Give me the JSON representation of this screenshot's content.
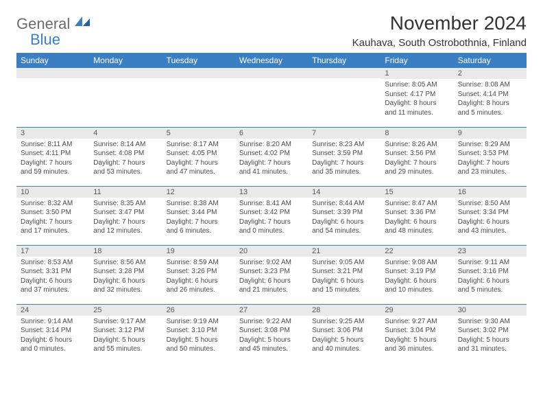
{
  "brand": {
    "text1": "General",
    "text2": "Blue",
    "text_color": "#6b6b6b",
    "accent_color": "#3a7fc4"
  },
  "header": {
    "month_title": "November 2024",
    "location": "Kauhava, South Ostrobothnia, Finland"
  },
  "styling": {
    "header_bg": "#3a7fc4",
    "header_text_color": "#ffffff",
    "daynum_bg": "#e9e9e9",
    "daynum_color": "#585858",
    "body_text_color": "#4a4a4a",
    "row_border_color": "#3a7fc4",
    "page_bg": "#ffffff",
    "font_family": "Arial",
    "month_title_fontsize": 28,
    "location_fontsize": 15,
    "header_fontsize": 12,
    "daynum_fontsize": 11,
    "content_fontsize": 10,
    "columns": 7,
    "rows": 5
  },
  "day_names": [
    "Sunday",
    "Monday",
    "Tuesday",
    "Wednesday",
    "Thursday",
    "Friday",
    "Saturday"
  ],
  "weeks": [
    [
      {
        "n": "",
        "sr": "",
        "ss": "",
        "dl": ""
      },
      {
        "n": "",
        "sr": "",
        "ss": "",
        "dl": ""
      },
      {
        "n": "",
        "sr": "",
        "ss": "",
        "dl": ""
      },
      {
        "n": "",
        "sr": "",
        "ss": "",
        "dl": ""
      },
      {
        "n": "",
        "sr": "",
        "ss": "",
        "dl": ""
      },
      {
        "n": "1",
        "sr": "Sunrise: 8:05 AM",
        "ss": "Sunset: 4:17 PM",
        "dl": "Daylight: 8 hours and 11 minutes."
      },
      {
        "n": "2",
        "sr": "Sunrise: 8:08 AM",
        "ss": "Sunset: 4:14 PM",
        "dl": "Daylight: 8 hours and 5 minutes."
      }
    ],
    [
      {
        "n": "3",
        "sr": "Sunrise: 8:11 AM",
        "ss": "Sunset: 4:11 PM",
        "dl": "Daylight: 7 hours and 59 minutes."
      },
      {
        "n": "4",
        "sr": "Sunrise: 8:14 AM",
        "ss": "Sunset: 4:08 PM",
        "dl": "Daylight: 7 hours and 53 minutes."
      },
      {
        "n": "5",
        "sr": "Sunrise: 8:17 AM",
        "ss": "Sunset: 4:05 PM",
        "dl": "Daylight: 7 hours and 47 minutes."
      },
      {
        "n": "6",
        "sr": "Sunrise: 8:20 AM",
        "ss": "Sunset: 4:02 PM",
        "dl": "Daylight: 7 hours and 41 minutes."
      },
      {
        "n": "7",
        "sr": "Sunrise: 8:23 AM",
        "ss": "Sunset: 3:59 PM",
        "dl": "Daylight: 7 hours and 35 minutes."
      },
      {
        "n": "8",
        "sr": "Sunrise: 8:26 AM",
        "ss": "Sunset: 3:56 PM",
        "dl": "Daylight: 7 hours and 29 minutes."
      },
      {
        "n": "9",
        "sr": "Sunrise: 8:29 AM",
        "ss": "Sunset: 3:53 PM",
        "dl": "Daylight: 7 hours and 23 minutes."
      }
    ],
    [
      {
        "n": "10",
        "sr": "Sunrise: 8:32 AM",
        "ss": "Sunset: 3:50 PM",
        "dl": "Daylight: 7 hours and 17 minutes."
      },
      {
        "n": "11",
        "sr": "Sunrise: 8:35 AM",
        "ss": "Sunset: 3:47 PM",
        "dl": "Daylight: 7 hours and 12 minutes."
      },
      {
        "n": "12",
        "sr": "Sunrise: 8:38 AM",
        "ss": "Sunset: 3:44 PM",
        "dl": "Daylight: 7 hours and 6 minutes."
      },
      {
        "n": "13",
        "sr": "Sunrise: 8:41 AM",
        "ss": "Sunset: 3:42 PM",
        "dl": "Daylight: 7 hours and 0 minutes."
      },
      {
        "n": "14",
        "sr": "Sunrise: 8:44 AM",
        "ss": "Sunset: 3:39 PM",
        "dl": "Daylight: 6 hours and 54 minutes."
      },
      {
        "n": "15",
        "sr": "Sunrise: 8:47 AM",
        "ss": "Sunset: 3:36 PM",
        "dl": "Daylight: 6 hours and 48 minutes."
      },
      {
        "n": "16",
        "sr": "Sunrise: 8:50 AM",
        "ss": "Sunset: 3:34 PM",
        "dl": "Daylight: 6 hours and 43 minutes."
      }
    ],
    [
      {
        "n": "17",
        "sr": "Sunrise: 8:53 AM",
        "ss": "Sunset: 3:31 PM",
        "dl": "Daylight: 6 hours and 37 minutes."
      },
      {
        "n": "18",
        "sr": "Sunrise: 8:56 AM",
        "ss": "Sunset: 3:28 PM",
        "dl": "Daylight: 6 hours and 32 minutes."
      },
      {
        "n": "19",
        "sr": "Sunrise: 8:59 AM",
        "ss": "Sunset: 3:26 PM",
        "dl": "Daylight: 6 hours and 26 minutes."
      },
      {
        "n": "20",
        "sr": "Sunrise: 9:02 AM",
        "ss": "Sunset: 3:23 PM",
        "dl": "Daylight: 6 hours and 21 minutes."
      },
      {
        "n": "21",
        "sr": "Sunrise: 9:05 AM",
        "ss": "Sunset: 3:21 PM",
        "dl": "Daylight: 6 hours and 15 minutes."
      },
      {
        "n": "22",
        "sr": "Sunrise: 9:08 AM",
        "ss": "Sunset: 3:19 PM",
        "dl": "Daylight: 6 hours and 10 minutes."
      },
      {
        "n": "23",
        "sr": "Sunrise: 9:11 AM",
        "ss": "Sunset: 3:16 PM",
        "dl": "Daylight: 6 hours and 5 minutes."
      }
    ],
    [
      {
        "n": "24",
        "sr": "Sunrise: 9:14 AM",
        "ss": "Sunset: 3:14 PM",
        "dl": "Daylight: 6 hours and 0 minutes."
      },
      {
        "n": "25",
        "sr": "Sunrise: 9:17 AM",
        "ss": "Sunset: 3:12 PM",
        "dl": "Daylight: 5 hours and 55 minutes."
      },
      {
        "n": "26",
        "sr": "Sunrise: 9:19 AM",
        "ss": "Sunset: 3:10 PM",
        "dl": "Daylight: 5 hours and 50 minutes."
      },
      {
        "n": "27",
        "sr": "Sunrise: 9:22 AM",
        "ss": "Sunset: 3:08 PM",
        "dl": "Daylight: 5 hours and 45 minutes."
      },
      {
        "n": "28",
        "sr": "Sunrise: 9:25 AM",
        "ss": "Sunset: 3:06 PM",
        "dl": "Daylight: 5 hours and 40 minutes."
      },
      {
        "n": "29",
        "sr": "Sunrise: 9:27 AM",
        "ss": "Sunset: 3:04 PM",
        "dl": "Daylight: 5 hours and 36 minutes."
      },
      {
        "n": "30",
        "sr": "Sunrise: 9:30 AM",
        "ss": "Sunset: 3:02 PM",
        "dl": "Daylight: 5 hours and 31 minutes."
      }
    ]
  ]
}
